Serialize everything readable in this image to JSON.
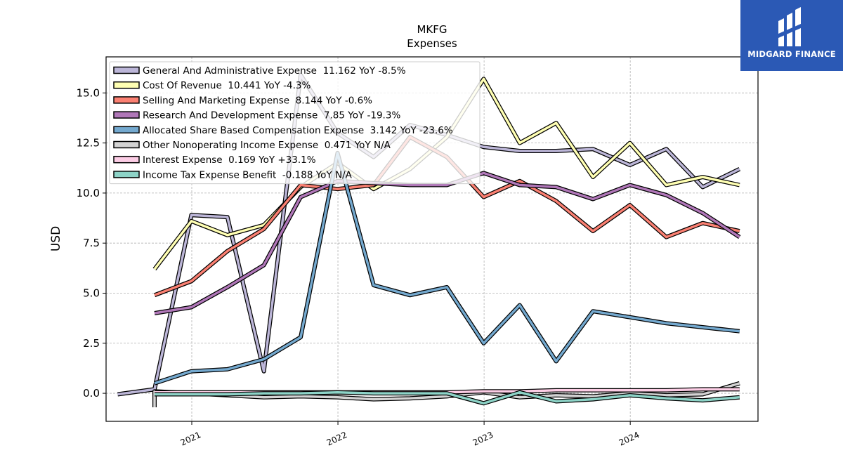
{
  "brand": {
    "name": "MIDGARD FINANCE",
    "bg_color": "#2b59b5",
    "icon": "midgard-logo-icon"
  },
  "chart_data": {
    "type": "line",
    "title": "MKFG",
    "subtitle": "Expenses",
    "xlabel": "",
    "ylabel": "USD",
    "xlim": [
      "2020-06-01",
      "2024-11-15"
    ],
    "ylim": [
      -1.4,
      16.8
    ],
    "x_ticks": [
      "2021",
      "2022",
      "2023",
      "2024"
    ],
    "y_ticks": [
      "0.0",
      "2.5",
      "5.0",
      "7.5",
      "10.0",
      "12.5",
      "15.0"
    ],
    "grid": true,
    "legend_position": "top-left",
    "series": [
      {
        "name": "General And Administrative Expense",
        "legend": "General And Administrative Expense  11.162 YoY -8.5%",
        "color": "#bcb6d8",
        "x": [
          "2020-06-30",
          "2020-09-30",
          "2020-12-31",
          "2021-03-31",
          "2021-06-30",
          "2021-09-30",
          "2021-12-31",
          "2022-03-31",
          "2022-06-30",
          "2022-09-30",
          "2022-12-31",
          "2023-03-31",
          "2023-06-30",
          "2023-09-30",
          "2023-12-31",
          "2024-03-31",
          "2024-06-30",
          "2024-09-30"
        ],
        "y": [
          -0.05,
          0.2,
          8.9,
          8.8,
          1.1,
          15.9,
          13.0,
          11.8,
          13.4,
          12.9,
          12.3,
          12.1,
          12.1,
          12.2,
          11.4,
          12.2,
          10.3,
          11.2
        ]
      },
      {
        "name": "Cost Of Revenue",
        "legend": "Cost Of Revenue  10.441 YoY -4.3%",
        "color": "#ffffb3",
        "x": [
          "2020-09-30",
          "2020-12-31",
          "2021-03-31",
          "2021-06-30",
          "2021-09-30",
          "2021-12-31",
          "2022-03-31",
          "2022-06-30",
          "2022-09-30",
          "2022-12-31",
          "2023-03-31",
          "2023-06-30",
          "2023-09-30",
          "2023-12-31",
          "2024-03-31",
          "2024-06-30",
          "2024-09-30"
        ],
        "y": [
          6.2,
          8.6,
          7.9,
          8.4,
          10.3,
          11.5,
          10.2,
          11.2,
          12.8,
          15.7,
          12.5,
          13.5,
          10.8,
          12.5,
          10.4,
          10.8,
          10.4
        ]
      },
      {
        "name": "Selling And Marketing Expense",
        "legend": "Selling And Marketing Expense  8.144 YoY -0.6%",
        "color": "#fb8072",
        "x": [
          "2020-09-30",
          "2020-12-31",
          "2021-03-31",
          "2021-06-30",
          "2021-09-30",
          "2021-12-31",
          "2022-03-31",
          "2022-06-30",
          "2022-09-30",
          "2022-12-31",
          "2023-03-31",
          "2023-06-30",
          "2023-09-30",
          "2023-12-31",
          "2024-03-31",
          "2024-06-30",
          "2024-09-30"
        ],
        "y": [
          4.9,
          5.6,
          7.1,
          8.2,
          10.4,
          10.2,
          10.4,
          12.8,
          11.8,
          9.8,
          10.6,
          9.6,
          8.1,
          9.4,
          7.8,
          8.5,
          8.1
        ]
      },
      {
        "name": "Research And Development Expense",
        "legend": "Research And Development Expense  7.85 YoY -19.3%",
        "color": "#b077b8",
        "x": [
          "2020-09-30",
          "2020-12-31",
          "2021-03-31",
          "2021-06-30",
          "2021-09-30",
          "2021-12-31",
          "2022-03-31",
          "2022-06-30",
          "2022-09-30",
          "2022-12-31",
          "2023-03-31",
          "2023-06-30",
          "2023-09-30",
          "2023-12-31",
          "2024-03-31",
          "2024-06-30",
          "2024-09-30"
        ],
        "y": [
          4.0,
          4.3,
          5.3,
          6.4,
          9.8,
          10.6,
          10.5,
          10.4,
          10.4,
          11.0,
          10.4,
          10.3,
          9.7,
          10.4,
          9.9,
          9.0,
          7.8
        ]
      },
      {
        "name": "Allocated Share Based Compensation Expense",
        "legend": "Allocated Share Based Compensation Expense  3.142 YoY -23.6%",
        "color": "#74a9cf",
        "x": [
          "2020-09-30",
          "2020-12-31",
          "2021-03-31",
          "2021-06-30",
          "2021-09-30",
          "2021-12-31",
          "2022-03-31",
          "2022-06-30",
          "2022-09-30",
          "2022-12-31",
          "2023-03-31",
          "2023-06-30",
          "2023-09-30",
          "2023-12-31",
          "2024-03-31",
          "2024-06-30",
          "2024-09-30"
        ],
        "y": [
          0.5,
          1.1,
          1.2,
          1.7,
          2.8,
          12.0,
          5.4,
          4.9,
          5.3,
          2.5,
          4.4,
          1.6,
          4.1,
          3.8,
          3.5,
          3.3,
          3.1
        ]
      },
      {
        "name": "Other Nonoperating Income Expense",
        "legend": "Other Nonoperating Income Expense  0.471 YoY N/A",
        "color": "#d3d3d3",
        "x": [
          "2020-09-30",
          "2020-09-30",
          "2020-12-31",
          "2021-03-31",
          "2021-06-30",
          "2021-09-30",
          "2021-12-31",
          "2022-03-31",
          "2022-06-30",
          "2022-09-30",
          "2022-12-31",
          "2023-03-31",
          "2023-06-30",
          "2023-09-30",
          "2023-12-31",
          "2024-03-31",
          "2024-06-30",
          "2024-09-30"
        ],
        "y": [
          -0.7,
          0.1,
          0.0,
          -0.1,
          -0.2,
          -0.15,
          -0.2,
          -0.3,
          -0.25,
          -0.15,
          0.05,
          -0.2,
          -0.1,
          -0.15,
          0.0,
          -0.1,
          -0.05,
          0.5
        ]
      },
      {
        "name": "Interest Expense",
        "legend": "Interest Expense  0.169 YoY +33.1%",
        "color": "#fccde5",
        "x": [
          "2020-09-30",
          "2020-12-31",
          "2021-03-31",
          "2021-06-30",
          "2021-09-30",
          "2021-12-31",
          "2022-03-31",
          "2022-06-30",
          "2022-09-30",
          "2022-12-31",
          "2023-03-31",
          "2023-06-30",
          "2023-09-30",
          "2023-12-31",
          "2024-03-31",
          "2024-06-30",
          "2024-09-30"
        ],
        "y": [
          0.05,
          0.05,
          0.05,
          0.05,
          0.05,
          0.05,
          0.05,
          0.05,
          0.05,
          0.1,
          0.1,
          0.15,
          0.15,
          0.15,
          0.15,
          0.2,
          0.2
        ]
      },
      {
        "name": "Income Tax Expense Benefit",
        "legend": "Income Tax Expense Benefit  -0.188 YoY N/A",
        "color": "#8dd3c7",
        "x": [
          "2020-09-30",
          "2020-12-31",
          "2021-03-31",
          "2021-06-30",
          "2021-09-30",
          "2021-12-31",
          "2022-03-31",
          "2022-06-30",
          "2022-09-30",
          "2022-12-31",
          "2023-03-31",
          "2023-06-30",
          "2023-09-30",
          "2023-12-31",
          "2024-03-31",
          "2024-06-30",
          "2024-09-30"
        ],
        "y": [
          -0.05,
          -0.05,
          -0.05,
          0.0,
          0.0,
          0.05,
          0.0,
          0.0,
          0.0,
          -0.5,
          0.05,
          -0.4,
          -0.3,
          -0.1,
          -0.25,
          -0.35,
          -0.2
        ]
      }
    ]
  }
}
